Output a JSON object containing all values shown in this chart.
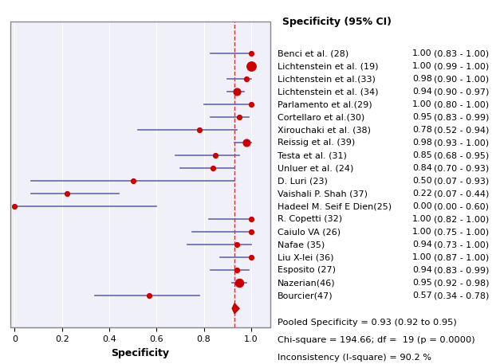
{
  "studies": [
    {
      "label": "Benci et al. (28)",
      "point": 1.0,
      "ci_lo": 0.83,
      "ci_hi": 1.0,
      "size": 6,
      "ci_str": "(0.83 - 1.00)"
    },
    {
      "label": "Lichtenstein et al. (19)",
      "point": 1.0,
      "ci_lo": 0.99,
      "ci_hi": 1.0,
      "size": 14,
      "ci_str": "(0.99 - 1.00)"
    },
    {
      "label": "Lichtenstein et al.(33)",
      "point": 0.98,
      "ci_lo": 0.9,
      "ci_hi": 1.0,
      "size": 6,
      "ci_str": "(0.90 - 1.00)"
    },
    {
      "label": "Lichtenstein et al. (34)",
      "point": 0.94,
      "ci_lo": 0.9,
      "ci_hi": 0.97,
      "size": 10,
      "ci_str": "(0.90 - 0.97)"
    },
    {
      "label": "Parlamento et al.(29)",
      "point": 1.0,
      "ci_lo": 0.8,
      "ci_hi": 1.0,
      "size": 6,
      "ci_str": "(0.80 - 1.00)"
    },
    {
      "label": "Cortellaro et al.(30)",
      "point": 0.95,
      "ci_lo": 0.83,
      "ci_hi": 0.99,
      "size": 6,
      "ci_str": "(0.83 - 0.99)"
    },
    {
      "label": "Xirouchaki et al. (38)",
      "point": 0.78,
      "ci_lo": 0.52,
      "ci_hi": 0.94,
      "size": 6,
      "ci_str": "(0.52 - 0.94)"
    },
    {
      "label": "Reissig et al. (39)",
      "point": 0.98,
      "ci_lo": 0.93,
      "ci_hi": 1.0,
      "size": 10,
      "ci_str": "(0.93 - 1.00)"
    },
    {
      "label": "Testa et al. (31)",
      "point": 0.85,
      "ci_lo": 0.68,
      "ci_hi": 0.95,
      "size": 6,
      "ci_str": "(0.68 - 0.95)"
    },
    {
      "label": "Unluer et al. (24)",
      "point": 0.84,
      "ci_lo": 0.7,
      "ci_hi": 0.93,
      "size": 6,
      "ci_str": "(0.70 - 0.93)"
    },
    {
      "label": "D. Luri (23)",
      "point": 0.5,
      "ci_lo": 0.07,
      "ci_hi": 0.93,
      "size": 6,
      "ci_str": "(0.07 - 0.93)"
    },
    {
      "label": "Vaishali P. Shah (37)",
      "point": 0.22,
      "ci_lo": 0.07,
      "ci_hi": 0.44,
      "size": 6,
      "ci_str": "(0.07 - 0.44)"
    },
    {
      "label": "Hadeel M. Seif E Dien(25)",
      "point": 0.0,
      "ci_lo": 0.0,
      "ci_hi": 0.6,
      "size": 6,
      "ci_str": "(0.00 - 0.60)"
    },
    {
      "label": "R. Copetti (32)",
      "point": 1.0,
      "ci_lo": 0.82,
      "ci_hi": 1.0,
      "size": 6,
      "ci_str": "(0.82 - 1.00)"
    },
    {
      "label": "Caiulo VA (26)",
      "point": 1.0,
      "ci_lo": 0.75,
      "ci_hi": 1.0,
      "size": 6,
      "ci_str": "(0.75 - 1.00)"
    },
    {
      "label": "Nafae (35)",
      "point": 0.94,
      "ci_lo": 0.73,
      "ci_hi": 1.0,
      "size": 6,
      "ci_str": "(0.73 - 1.00)"
    },
    {
      "label": "Liu X-lei (36)",
      "point": 1.0,
      "ci_lo": 0.87,
      "ci_hi": 1.0,
      "size": 6,
      "ci_str": "(0.87 - 1.00)"
    },
    {
      "label": "Esposito (27)",
      "point": 0.94,
      "ci_lo": 0.83,
      "ci_hi": 0.99,
      "size": 6,
      "ci_str": "(0.83 - 0.99)"
    },
    {
      "label": "Nazerian(46)",
      "point": 0.95,
      "ci_lo": 0.92,
      "ci_hi": 0.98,
      "size": 12,
      "ci_str": "(0.92 - 0.98)"
    },
    {
      "label": "Bourcier(47)",
      "point": 0.57,
      "ci_lo": 0.34,
      "ci_hi": 0.78,
      "size": 6,
      "ci_str": "(0.34 - 0.78)"
    }
  ],
  "pooled": {
    "point": 0.93,
    "ci_lo": 0.92,
    "ci_hi": 0.95
  },
  "pooled_line_x": [
    0.92,
    0.95
  ],
  "dashed_line_x": 0.93,
  "xlim": [
    -0.02,
    1.08
  ],
  "xticks": [
    0,
    0.2,
    0.4,
    0.6,
    0.8,
    1.0
  ],
  "xlabel": "Specificity",
  "col_header": "Specificity (95% CI)",
  "point_values": [
    1.0,
    1.0,
    0.98,
    0.94,
    1.0,
    0.95,
    0.78,
    0.98,
    0.85,
    0.84,
    0.5,
    0.22,
    0.0,
    1.0,
    1.0,
    0.94,
    1.0,
    0.94,
    0.95,
    0.57
  ],
  "summary_text": [
    "Pooled Specificity = 0.93 (0.92 to 0.95)",
    "Chi-square = 194.66; df =  19 (p = 0.0000)",
    "Inconsistency (I-square) = 90.2 %"
  ],
  "dot_color": "#cc0000",
  "ci_line_color": "#6666aa",
  "pooled_color": "#cc0000",
  "dashed_color": "#cc0000",
  "border_color": "#888888",
  "bg_plot": "#f0f0f8",
  "title_fontsize": 9,
  "label_fontsize": 8.5,
  "annot_fontsize": 8.5
}
